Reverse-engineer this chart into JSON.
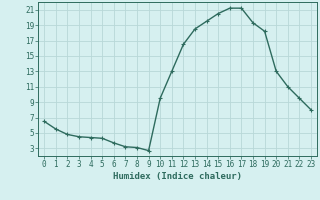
{
  "x": [
    0,
    1,
    2,
    3,
    4,
    5,
    6,
    7,
    8,
    9,
    10,
    11,
    12,
    13,
    14,
    15,
    16,
    17,
    18,
    19,
    20,
    21,
    22,
    23
  ],
  "y": [
    6.5,
    5.5,
    4.8,
    4.5,
    4.4,
    4.3,
    3.7,
    3.2,
    3.1,
    2.7,
    9.5,
    13.0,
    16.5,
    18.5,
    19.5,
    20.5,
    21.2,
    21.2,
    19.3,
    18.2,
    13.0,
    11.0,
    9.5,
    8.0
  ],
  "line_color": "#2e6b5e",
  "marker": "+",
  "marker_size": 3.5,
  "marker_linewidth": 0.8,
  "bg_color": "#d6f0f0",
  "grid_color": "#b8d8d8",
  "xlabel": "Humidex (Indice chaleur)",
  "xlim": [
    -0.5,
    23.5
  ],
  "ylim": [
    2,
    22
  ],
  "yticks": [
    3,
    5,
    7,
    9,
    11,
    13,
    15,
    17,
    19,
    21
  ],
  "xticks": [
    0,
    1,
    2,
    3,
    4,
    5,
    6,
    7,
    8,
    9,
    10,
    11,
    12,
    13,
    14,
    15,
    16,
    17,
    18,
    19,
    20,
    21,
    22,
    23
  ],
  "tick_color": "#2e6b5e",
  "label_fontsize": 6.5,
  "tick_fontsize": 5.5,
  "linewidth": 1.0
}
